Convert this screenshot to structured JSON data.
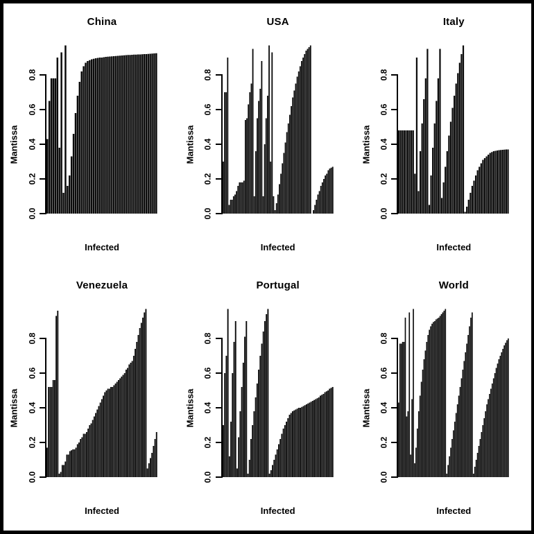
{
  "figure": {
    "background": "#ffffff",
    "frame_color": "#000000",
    "bar_color": "#0a0a0a"
  },
  "chart_data": [
    {
      "type": "bar",
      "title": "China",
      "ylabel": "Mantissa",
      "xlabel": "Infected",
      "ylim": [
        0,
        1
      ],
      "yticks": [
        "0.0",
        "0.2",
        "0.4",
        "0.6",
        "0.8"
      ],
      "grid": false,
      "legend": "none",
      "values": [
        0.43,
        0.65,
        0.78,
        0.78,
        0.78,
        0.9,
        0.38,
        0.93,
        0.12,
        0.97,
        0.16,
        0.22,
        0.33,
        0.46,
        0.58,
        0.68,
        0.76,
        0.82,
        0.85,
        0.87,
        0.88,
        0.885,
        0.89,
        0.893,
        0.896,
        0.898,
        0.9,
        0.9,
        0.902,
        0.904,
        0.905,
        0.906,
        0.907,
        0.908,
        0.909,
        0.91,
        0.911,
        0.912,
        0.913,
        0.914,
        0.915,
        0.915,
        0.916,
        0.917,
        0.917,
        0.918,
        0.918,
        0.919,
        0.92,
        0.92,
        0.921,
        0.922,
        0.923,
        0.924,
        0.925
      ]
    },
    {
      "type": "bar",
      "title": "USA",
      "ylabel": "Mantissa",
      "xlabel": "Infected",
      "ylim": [
        0,
        1
      ],
      "yticks": [
        "0.0",
        "0.2",
        "0.4",
        "0.6",
        "0.8"
      ],
      "grid": false,
      "legend": "none",
      "values": [
        0.3,
        0.7,
        0.7,
        0.9,
        0.05,
        0.08,
        0.08,
        0.1,
        0.11,
        0.13,
        0.16,
        0.18,
        0.18,
        0.18,
        0.19,
        0.54,
        0.55,
        0.63,
        0.7,
        0.75,
        0.95,
        0.1,
        0.36,
        0.55,
        0.65,
        0.72,
        0.88,
        0.1,
        0.4,
        0.55,
        0.68,
        0.97,
        0.3,
        0.93,
        0.1,
        0.02,
        0.06,
        0.11,
        0.17,
        0.23,
        0.29,
        0.35,
        0.41,
        0.47,
        0.52,
        0.57,
        0.62,
        0.67,
        0.71,
        0.75,
        0.79,
        0.82,
        0.85,
        0.88,
        0.9,
        0.92,
        0.94,
        0.95,
        0.96,
        0.97,
        0.0,
        0.02,
        0.05,
        0.08,
        0.11,
        0.13,
        0.16,
        0.18,
        0.2,
        0.22,
        0.23,
        0.25,
        0.26,
        0.265,
        0.27
      ]
    },
    {
      "type": "bar",
      "title": "Italy",
      "ylabel": "Mantissa",
      "xlabel": "Infected",
      "ylim": [
        0,
        1
      ],
      "yticks": [
        "0.0",
        "0.2",
        "0.4",
        "0.6",
        "0.8"
      ],
      "grid": false,
      "legend": "none",
      "values": [
        0.48,
        0.48,
        0.48,
        0.48,
        0.48,
        0.48,
        0.48,
        0.48,
        0.48,
        0.23,
        0.9,
        0.13,
        0.36,
        0.52,
        0.66,
        0.78,
        0.95,
        0.05,
        0.22,
        0.38,
        0.52,
        0.65,
        0.78,
        0.95,
        0.09,
        0.18,
        0.27,
        0.36,
        0.45,
        0.53,
        0.61,
        0.68,
        0.75,
        0.81,
        0.87,
        0.92,
        0.97,
        0.01,
        0.04,
        0.08,
        0.12,
        0.16,
        0.19,
        0.22,
        0.25,
        0.27,
        0.29,
        0.31,
        0.32,
        0.33,
        0.34,
        0.35,
        0.355,
        0.36,
        0.362,
        0.364,
        0.366,
        0.367,
        0.368,
        0.369,
        0.37,
        0.37
      ]
    },
    {
      "type": "bar",
      "title": "Venezuela",
      "ylabel": "Mantissa",
      "xlabel": "Infected",
      "ylim": [
        0,
        1
      ],
      "yticks": [
        "0.0",
        "0.2",
        "0.4",
        "0.6",
        "0.8"
      ],
      "grid": false,
      "legend": "none",
      "values": [
        0.17,
        0.52,
        0.52,
        0.52,
        0.56,
        0.56,
        0.93,
        0.96,
        0.02,
        0.03,
        0.07,
        0.07,
        0.09,
        0.13,
        0.13,
        0.15,
        0.155,
        0.16,
        0.16,
        0.17,
        0.19,
        0.2,
        0.22,
        0.23,
        0.25,
        0.25,
        0.26,
        0.28,
        0.3,
        0.31,
        0.33,
        0.35,
        0.37,
        0.39,
        0.41,
        0.43,
        0.45,
        0.47,
        0.49,
        0.5,
        0.51,
        0.51,
        0.52,
        0.52,
        0.53,
        0.54,
        0.55,
        0.56,
        0.57,
        0.58,
        0.59,
        0.6,
        0.62,
        0.63,
        0.65,
        0.66,
        0.67,
        0.7,
        0.74,
        0.78,
        0.82,
        0.86,
        0.89,
        0.92,
        0.95,
        0.97,
        0.05,
        0.08,
        0.11,
        0.14,
        0.18,
        0.22,
        0.26
      ]
    },
    {
      "type": "bar",
      "title": "Portugal",
      "ylabel": "Mantissa",
      "xlabel": "Infected",
      "ylim": [
        0,
        1
      ],
      "yticks": [
        "0.0",
        "0.2",
        "0.4",
        "0.6",
        "0.8"
      ],
      "grid": false,
      "legend": "none",
      "values": [
        0.3,
        0.6,
        0.7,
        0.97,
        0.12,
        0.32,
        0.6,
        0.78,
        0.9,
        0.05,
        0.23,
        0.38,
        0.52,
        0.66,
        0.81,
        0.9,
        0.02,
        0.1,
        0.22,
        0.3,
        0.38,
        0.46,
        0.54,
        0.62,
        0.7,
        0.77,
        0.84,
        0.9,
        0.94,
        0.97,
        0.02,
        0.04,
        0.07,
        0.1,
        0.13,
        0.16,
        0.19,
        0.22,
        0.25,
        0.28,
        0.3,
        0.32,
        0.34,
        0.36,
        0.37,
        0.38,
        0.385,
        0.39,
        0.395,
        0.4,
        0.4,
        0.405,
        0.41,
        0.415,
        0.42,
        0.425,
        0.43,
        0.435,
        0.44,
        0.445,
        0.45,
        0.455,
        0.46,
        0.47,
        0.475,
        0.48,
        0.49,
        0.495,
        0.5,
        0.51,
        0.515,
        0.52
      ]
    },
    {
      "type": "bar",
      "title": "World",
      "ylabel": "Mantissa",
      "xlabel": "Infected",
      "ylim": [
        0,
        1
      ],
      "yticks": [
        "0.0",
        "0.2",
        "0.4",
        "0.6",
        "0.8"
      ],
      "grid": false,
      "legend": "none",
      "values": [
        0.43,
        0.77,
        0.77,
        0.78,
        0.78,
        0.92,
        0.35,
        0.38,
        0.95,
        0.13,
        0.45,
        0.97,
        0.08,
        0.17,
        0.28,
        0.38,
        0.47,
        0.55,
        0.62,
        0.68,
        0.73,
        0.78,
        0.82,
        0.85,
        0.87,
        0.885,
        0.895,
        0.9,
        0.91,
        0.915,
        0.92,
        0.93,
        0.94,
        0.95,
        0.96,
        0.97,
        0.02,
        0.07,
        0.12,
        0.17,
        0.22,
        0.27,
        0.32,
        0.37,
        0.42,
        0.47,
        0.52,
        0.57,
        0.62,
        0.67,
        0.72,
        0.77,
        0.82,
        0.87,
        0.92,
        0.95,
        0.02,
        0.06,
        0.1,
        0.14,
        0.18,
        0.22,
        0.26,
        0.3,
        0.34,
        0.38,
        0.42,
        0.45,
        0.48,
        0.51,
        0.54,
        0.57,
        0.6,
        0.63,
        0.655,
        0.68,
        0.7,
        0.72,
        0.74,
        0.76,
        0.775,
        0.79,
        0.8
      ]
    }
  ]
}
